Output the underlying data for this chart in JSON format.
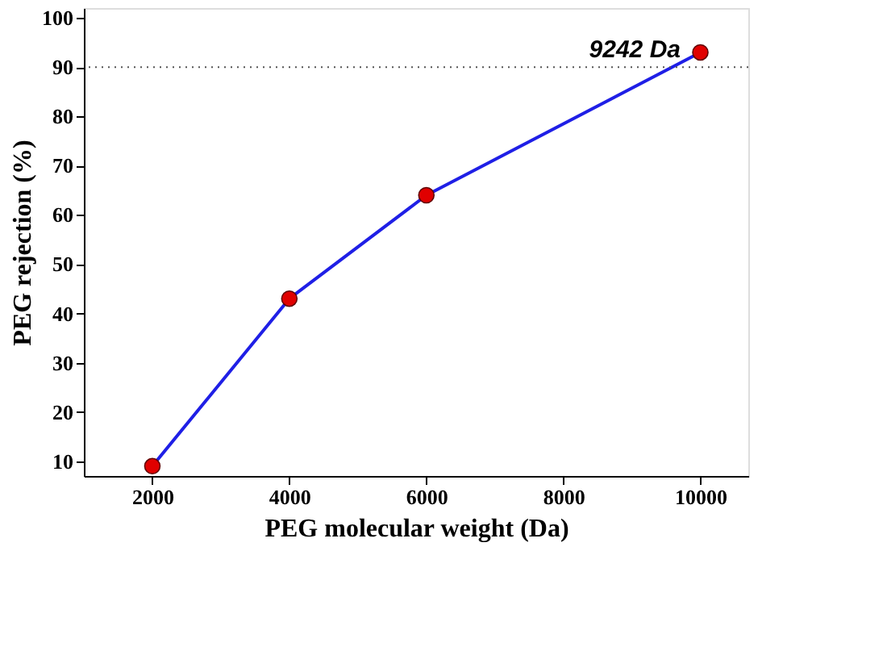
{
  "chart_data": {
    "type": "line",
    "xlabel": "PEG molecular weight (Da)",
    "ylabel": "PEG rejection (%)",
    "x": [
      2000,
      4000,
      6000,
      10000
    ],
    "series": [
      {
        "color": "#1f1fe6",
        "colors": [
          "#e00000",
          "#e00000",
          "#e00000",
          "#e00000"
        ],
        "values": [
          9,
          43,
          64,
          93
        ]
      }
    ],
    "xlim": [
      1000,
      10700
    ],
    "xticks": [
      2000,
      4000,
      6000,
      8000,
      10000
    ],
    "ylim": [
      7,
      102
    ],
    "yticks": [
      10,
      20,
      30,
      40,
      50,
      60,
      70,
      80,
      90,
      100
    ],
    "ref_lines": [
      {
        "axis": "y",
        "value": 90,
        "label": "9242 Da",
        "color": "#555555",
        "line_style": "dotted"
      }
    ],
    "marker": "circle",
    "grid": false
  }
}
